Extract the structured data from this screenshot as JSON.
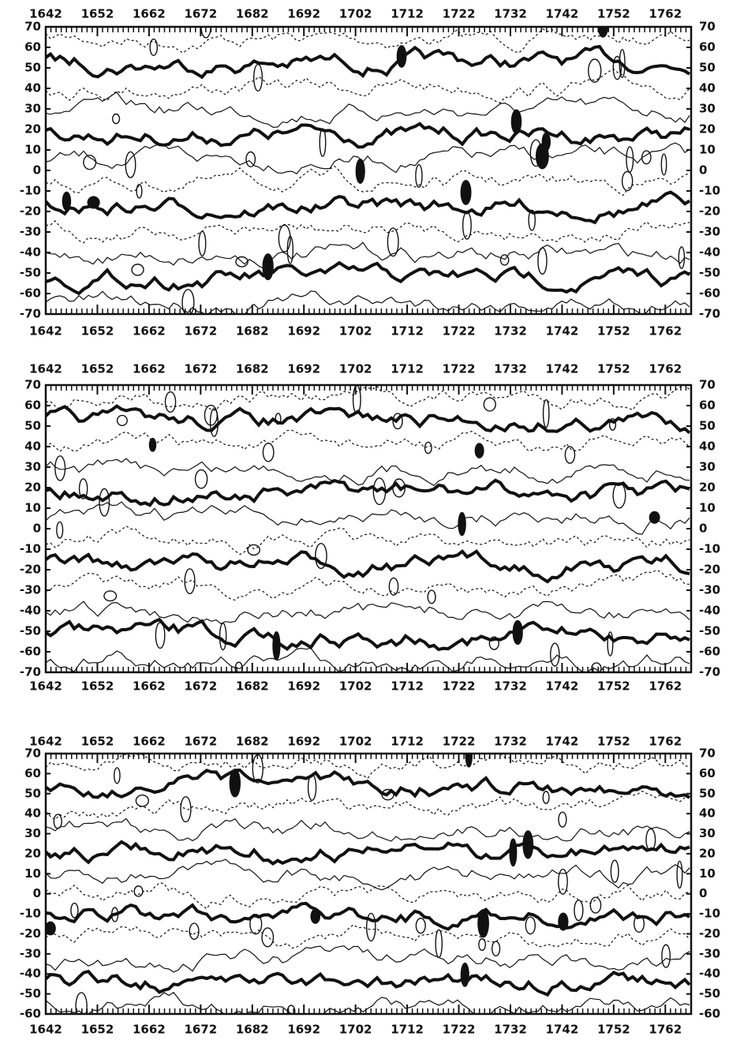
{
  "chart_data": [
    {
      "type": "contour",
      "xlim": [
        1642,
        1767
      ],
      "xticks": [
        1642,
        1652,
        1662,
        1672,
        1682,
        1692,
        1702,
        1712,
        1722,
        1732,
        1742,
        1752,
        1762
      ],
      "ylim": [
        -70,
        70
      ],
      "yticks": [
        70,
        60,
        50,
        40,
        30,
        20,
        10,
        0,
        -10,
        -20,
        -30,
        -40,
        -50,
        -60,
        -70
      ]
    },
    {
      "type": "contour",
      "xlim": [
        1642,
        1767
      ],
      "xticks": [
        1642,
        1652,
        1662,
        1672,
        1682,
        1692,
        1702,
        1712,
        1722,
        1732,
        1742,
        1752,
        1762
      ],
      "ylim": [
        -70,
        70
      ],
      "yticks": [
        70,
        60,
        50,
        40,
        30,
        20,
        10,
        0,
        -10,
        -20,
        -30,
        -40,
        -50,
        -60,
        -70
      ]
    },
    {
      "type": "contour",
      "xlim": [
        1642,
        1767
      ],
      "xticks": [
        1642,
        1652,
        1662,
        1672,
        1682,
        1692,
        1702,
        1712,
        1722,
        1732,
        1742,
        1752,
        1762
      ],
      "ylim": [
        -60,
        70
      ],
      "yticks": [
        70,
        60,
        50,
        40,
        30,
        20,
        10,
        0,
        -10,
        -20,
        -30,
        -40,
        -50,
        -60
      ]
    }
  ]
}
